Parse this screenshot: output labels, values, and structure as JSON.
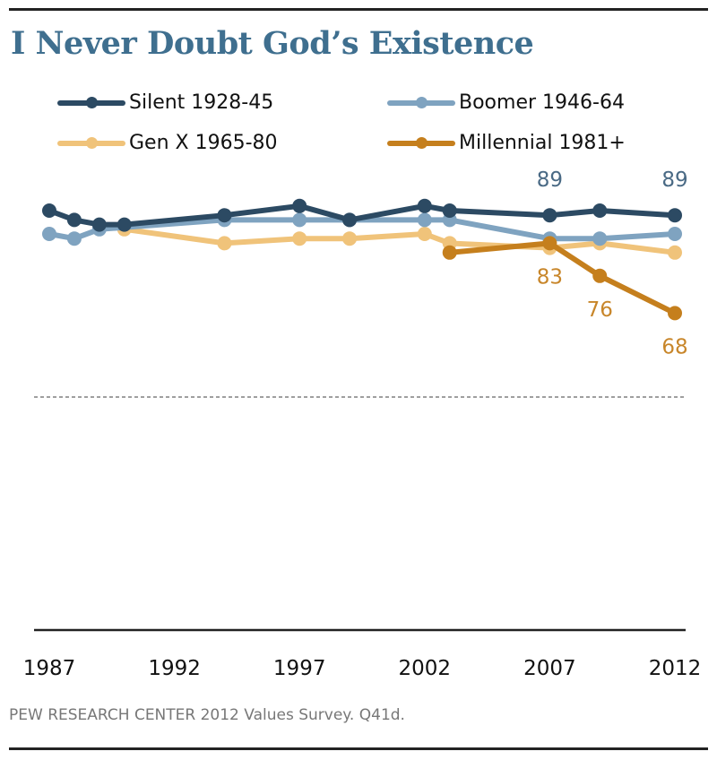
{
  "chart_data": {
    "type": "line",
    "title": "I Never Doubt God’s Existence",
    "xlabel": "",
    "ylabel": "",
    "xlim": [
      1987,
      2012
    ],
    "ylim": [
      0,
      100
    ],
    "x_ticks": [
      "1987",
      "1992",
      "1997",
      "2002",
      "2007",
      "2012"
    ],
    "grid": "dashed reference line at 50",
    "legend": "top",
    "series": [
      {
        "name": "Silent 1928-45",
        "color": "#2c4a63",
        "x": [
          1987,
          1988,
          1989,
          1990,
          1994,
          1997,
          1999,
          2002,
          2003,
          2007,
          2009,
          2012
        ],
        "values": [
          90,
          88,
          87,
          87,
          89,
          91,
          88,
          91,
          90,
          89,
          90,
          89
        ],
        "labels": [
          {
            "x": 2007,
            "text": "89"
          },
          {
            "x": 2012,
            "text": "89"
          }
        ]
      },
      {
        "name": "Boomer 1946-64",
        "color": "#7fa3c0",
        "x": [
          1987,
          1988,
          1989,
          1994,
          1997,
          1999,
          2002,
          2003,
          2007,
          2009,
          2012
        ],
        "values": [
          85,
          84,
          86,
          88,
          88,
          88,
          88,
          88,
          84,
          84,
          85
        ],
        "labels": []
      },
      {
        "name": "Gen X 1965-80",
        "color": "#f0c37a",
        "x": [
          1990,
          1994,
          1997,
          1999,
          2002,
          2003,
          2007,
          2009,
          2012
        ],
        "values": [
          86,
          83,
          84,
          84,
          85,
          83,
          82,
          83,
          81
        ],
        "labels": []
      },
      {
        "name": "Millennial 1981+",
        "color": "#c57f1d",
        "x": [
          2003,
          2007,
          2009,
          2012
        ],
        "values": [
          81,
          83,
          76,
          68
        ],
        "labels": [
          {
            "x": 2007,
            "text": "83"
          },
          {
            "x": 2009,
            "text": "76"
          },
          {
            "x": 2012,
            "text": "68"
          }
        ]
      }
    ]
  },
  "footer": "PEW RESEARCH  CENTER 2012 Values Survey.  Q41d."
}
